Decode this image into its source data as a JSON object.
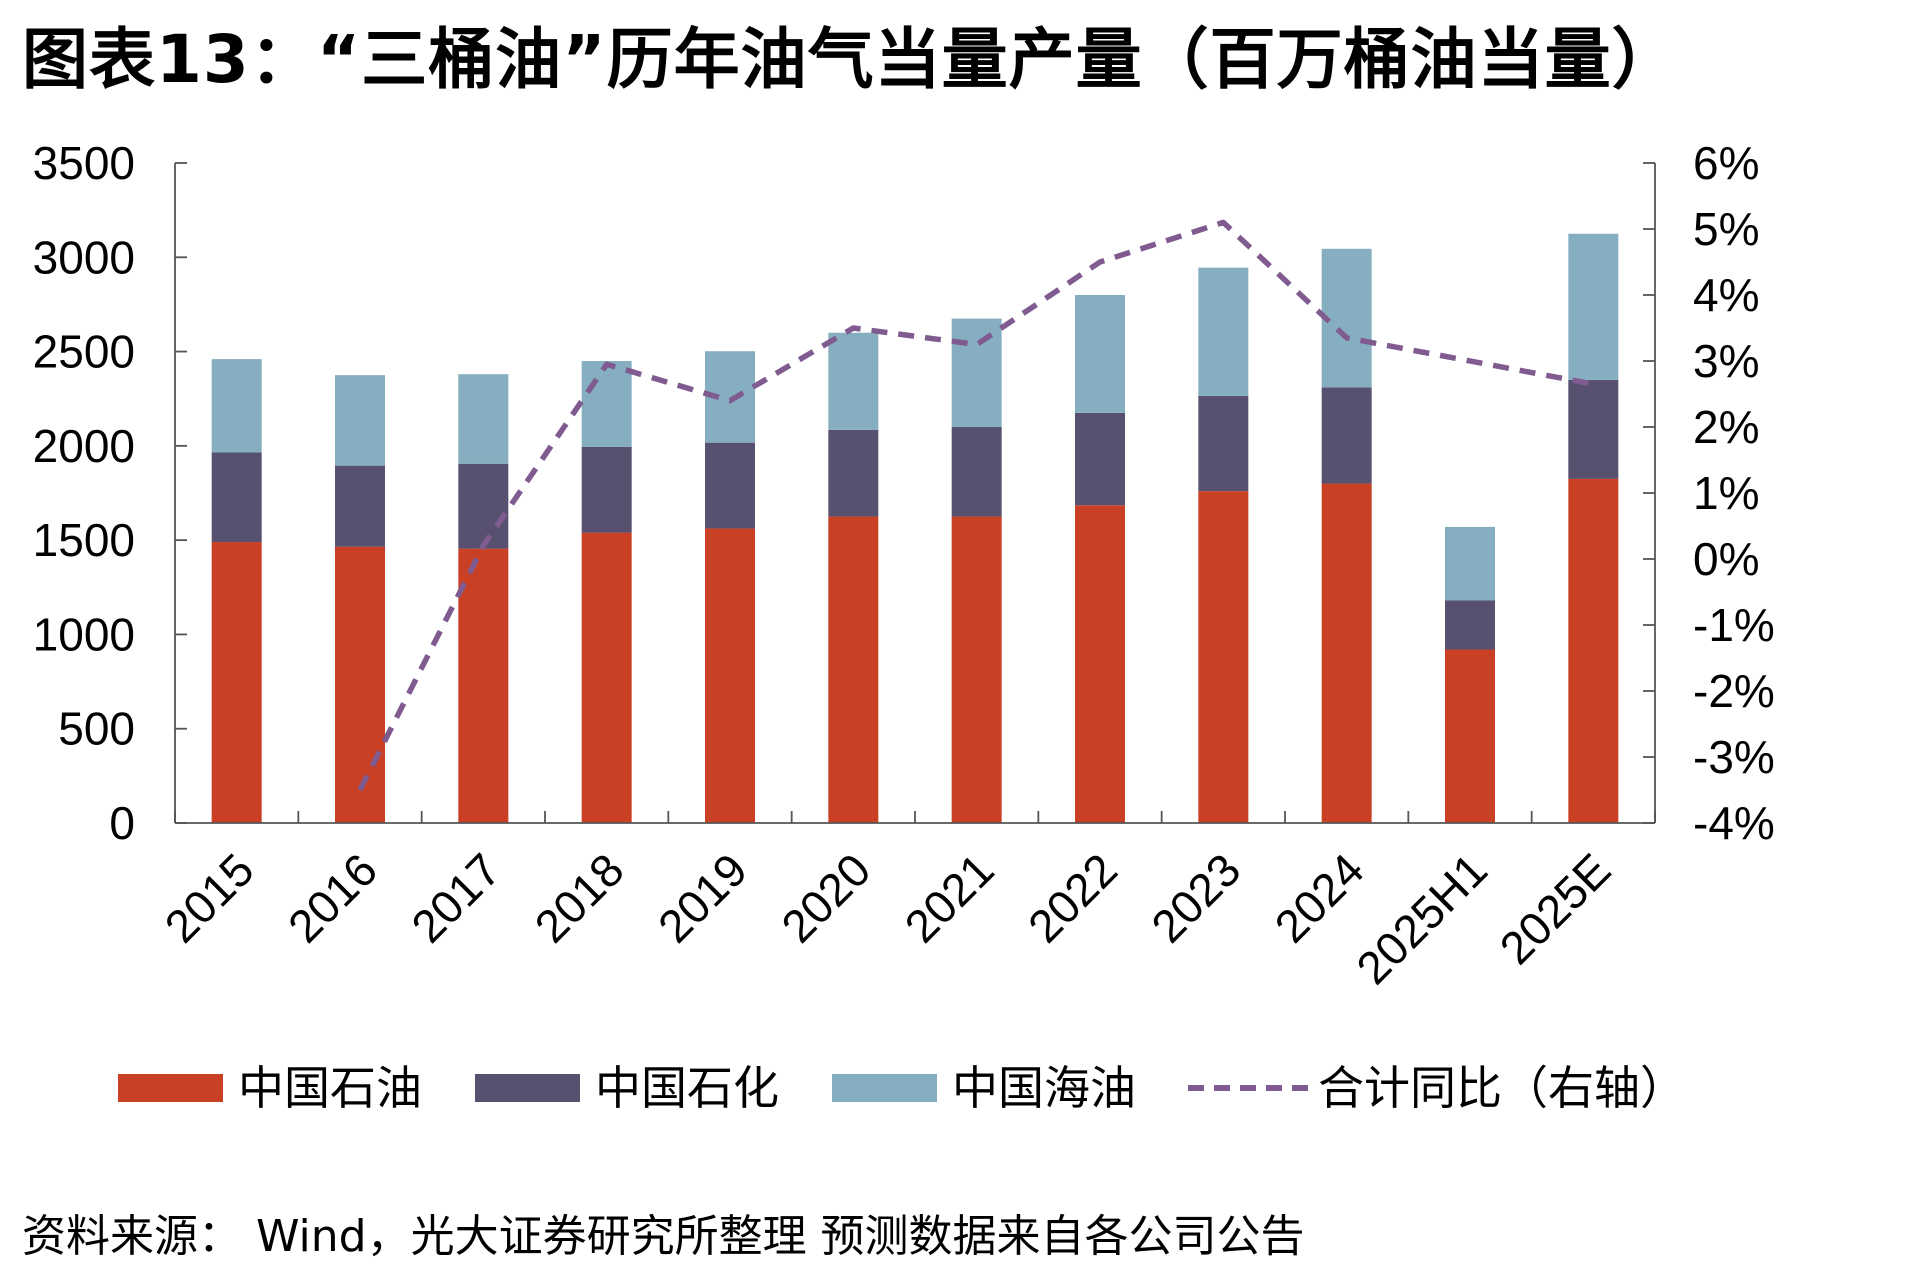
{
  "page": {
    "title": "图表13：“三桶油”历年油气当量产量（百万桶油当量）",
    "source": "资料来源： Wind，光大证券研究所整理 预测数据来自各公司公告"
  },
  "chart_data": {
    "type": "bar",
    "stacked": true,
    "categories": [
      "2015",
      "2016",
      "2017",
      "2018",
      "2019",
      "2020",
      "2021",
      "2022",
      "2023",
      "2024",
      "2025H1",
      "2025E"
    ],
    "series": [
      {
        "name": "中国石油",
        "color": "#c94025",
        "values": [
          1490,
          1465,
          1455,
          1540,
          1562,
          1625,
          1625,
          1685,
          1760,
          1800,
          920,
          1825
        ]
      },
      {
        "name": "中国石化",
        "color": "#57506f",
        "values": [
          475,
          430,
          450,
          455,
          455,
          460,
          475,
          490,
          505,
          510,
          260,
          525
        ]
      },
      {
        "name": "中国海油",
        "color": "#86aec1",
        "values": [
          495,
          480,
          475,
          455,
          485,
          515,
          575,
          625,
          680,
          735,
          390,
          775
        ]
      },
      {
        "name": "合计同比（右轴）",
        "color": "#7f5b90",
        "axis": "right",
        "type": "line",
        "style": "dashed",
        "values": [
          null,
          -3.5,
          0.2,
          2.95,
          2.4,
          3.5,
          3.25,
          4.5,
          5.1,
          3.35,
          null,
          2.65
        ]
      }
    ],
    "ylim": [
      0,
      3500
    ],
    "yticks": [
      "0",
      "500",
      "1000",
      "1500",
      "2000",
      "2500",
      "3000",
      "3500"
    ],
    "y2lim": [
      -4,
      6
    ],
    "y2ticks": [
      "-4%",
      "-3%",
      "-2%",
      "-1%",
      "0%",
      "1%",
      "2%",
      "3%",
      "4%",
      "5%",
      "6%"
    ],
    "legend": "bottom",
    "grid": false
  }
}
